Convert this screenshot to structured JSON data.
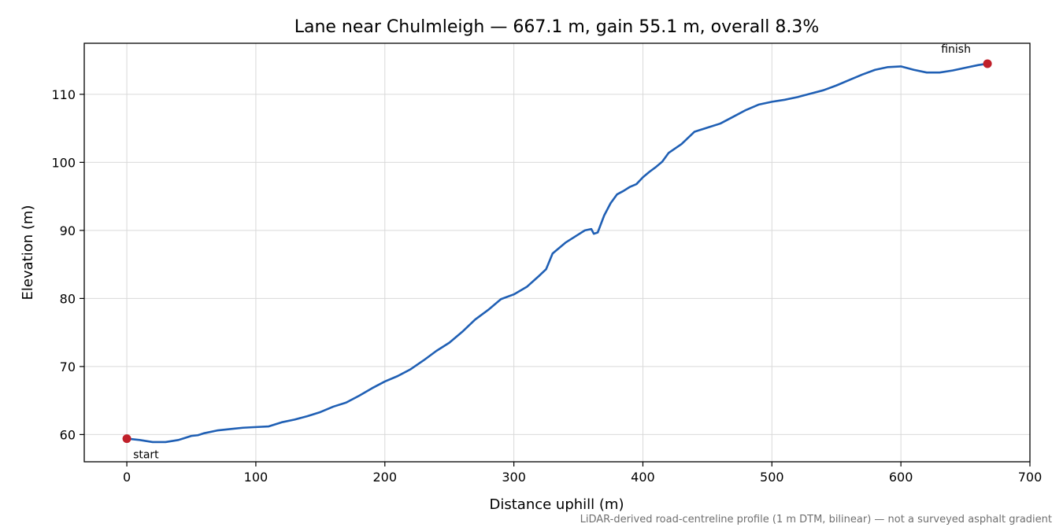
{
  "chart_data": {
    "type": "line",
    "title": "Lane near Chulmleigh — 667.1 m, gain 55.1 m, overall 8.3%",
    "xlabel": "Distance uphill (m)",
    "ylabel": "Elevation (m)",
    "footnote": "LiDAR-derived road-centreline profile (1 m DTM, bilinear) — not a surveyed asphalt gradient",
    "xlim": [
      -33,
      700
    ],
    "ylim": [
      56,
      117.5
    ],
    "xticks": [
      0,
      100,
      200,
      300,
      400,
      500,
      600,
      700
    ],
    "yticks": [
      60,
      70,
      80,
      90,
      100,
      110
    ],
    "grid": true,
    "line_color": "#1f5fb4",
    "marker_color": "#c0202a",
    "series": [
      {
        "x": [
          0,
          10,
          20,
          30,
          40,
          45,
          50,
          55,
          60,
          70,
          80,
          90,
          100,
          110,
          120,
          130,
          140,
          150,
          160,
          170,
          180,
          190,
          200,
          210,
          220,
          230,
          240,
          250,
          260,
          270,
          280,
          290,
          300,
          310,
          320,
          325,
          330,
          340,
          350,
          355,
          360,
          362,
          365,
          370,
          375,
          380,
          385,
          390,
          395,
          400,
          405,
          410,
          415,
          420,
          430,
          440,
          450,
          460,
          470,
          480,
          490,
          500,
          510,
          520,
          530,
          540,
          550,
          560,
          570,
          580,
          590,
          600,
          610,
          620,
          630,
          640,
          650,
          660,
          667.1
        ],
        "y": [
          59.4,
          59.2,
          58.9,
          58.9,
          59.2,
          59.5,
          59.8,
          59.9,
          60.2,
          60.6,
          60.8,
          61.0,
          61.1,
          61.2,
          61.8,
          62.2,
          62.7,
          63.3,
          64.1,
          64.7,
          65.7,
          66.8,
          67.8,
          68.6,
          69.6,
          70.9,
          72.3,
          73.5,
          75.1,
          76.9,
          78.3,
          79.9,
          80.6,
          81.7,
          83.4,
          84.3,
          86.6,
          88.2,
          89.4,
          90.0,
          90.2,
          89.5,
          89.7,
          92.2,
          94.0,
          95.3,
          95.8,
          96.4,
          96.8,
          97.8,
          98.6,
          99.3,
          100.1,
          101.4,
          102.7,
          104.5,
          105.1,
          105.7,
          106.7,
          107.7,
          108.5,
          108.9,
          109.2,
          109.6,
          110.1,
          110.6,
          111.3,
          112.1,
          112.9,
          113.6,
          114.0,
          114.1,
          113.6,
          113.2,
          113.2,
          113.5,
          113.9,
          114.3,
          114.5
        ]
      }
    ],
    "annotations": [
      {
        "label": "start",
        "x": 0,
        "y": 59.4
      },
      {
        "label": "finish",
        "x": 667.1,
        "y": 114.5
      }
    ]
  }
}
